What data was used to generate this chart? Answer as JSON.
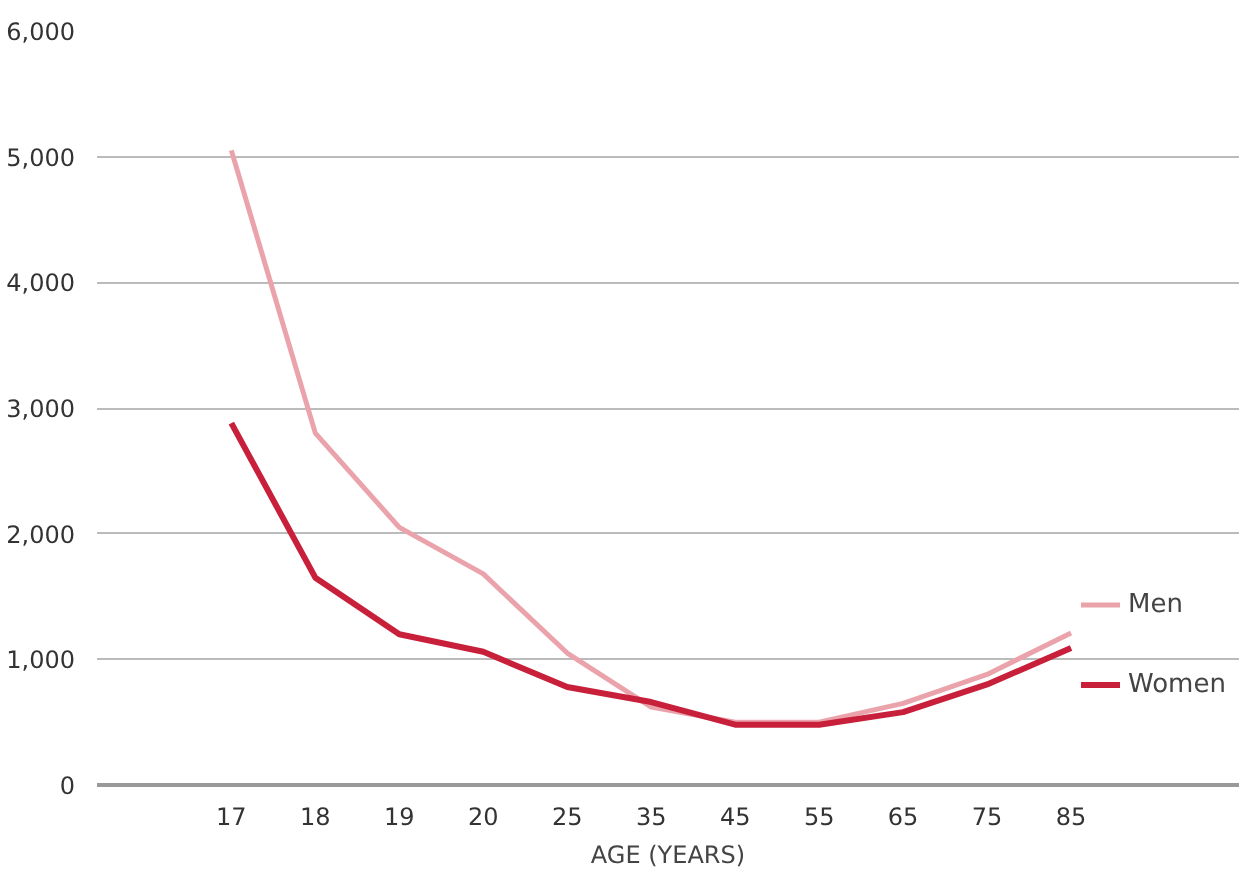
{
  "chart_data": {
    "type": "line",
    "xlabel": "AGE (YEARS)",
    "categories": [
      "17",
      "18",
      "19",
      "20",
      "25",
      "35",
      "45",
      "55",
      "65",
      "75",
      "85"
    ],
    "series": [
      {
        "name": "Men",
        "color": "#eba3ab",
        "values": [
          5050,
          2800,
          2050,
          1680,
          1050,
          620,
          500,
          500,
          650,
          880,
          1210
        ]
      },
      {
        "name": "Women",
        "color": "#c8203a",
        "values": [
          2880,
          1650,
          1200,
          1060,
          780,
          660,
          480,
          480,
          580,
          800,
          1090
        ]
      }
    ],
    "ylim": [
      0,
      6000
    ],
    "yticks": [
      {
        "value": 0,
        "label": "0"
      },
      {
        "value": 1000,
        "label": "1,000"
      },
      {
        "value": 2000,
        "label": "2,000"
      },
      {
        "value": 3000,
        "label": "3,000"
      },
      {
        "value": 4000,
        "label": "4,000"
      },
      {
        "value": 5000,
        "label": "5,000"
      },
      {
        "value": 6000,
        "label": "6,000"
      }
    ],
    "grid": "y",
    "legend": "right",
    "line_style": "solid"
  }
}
